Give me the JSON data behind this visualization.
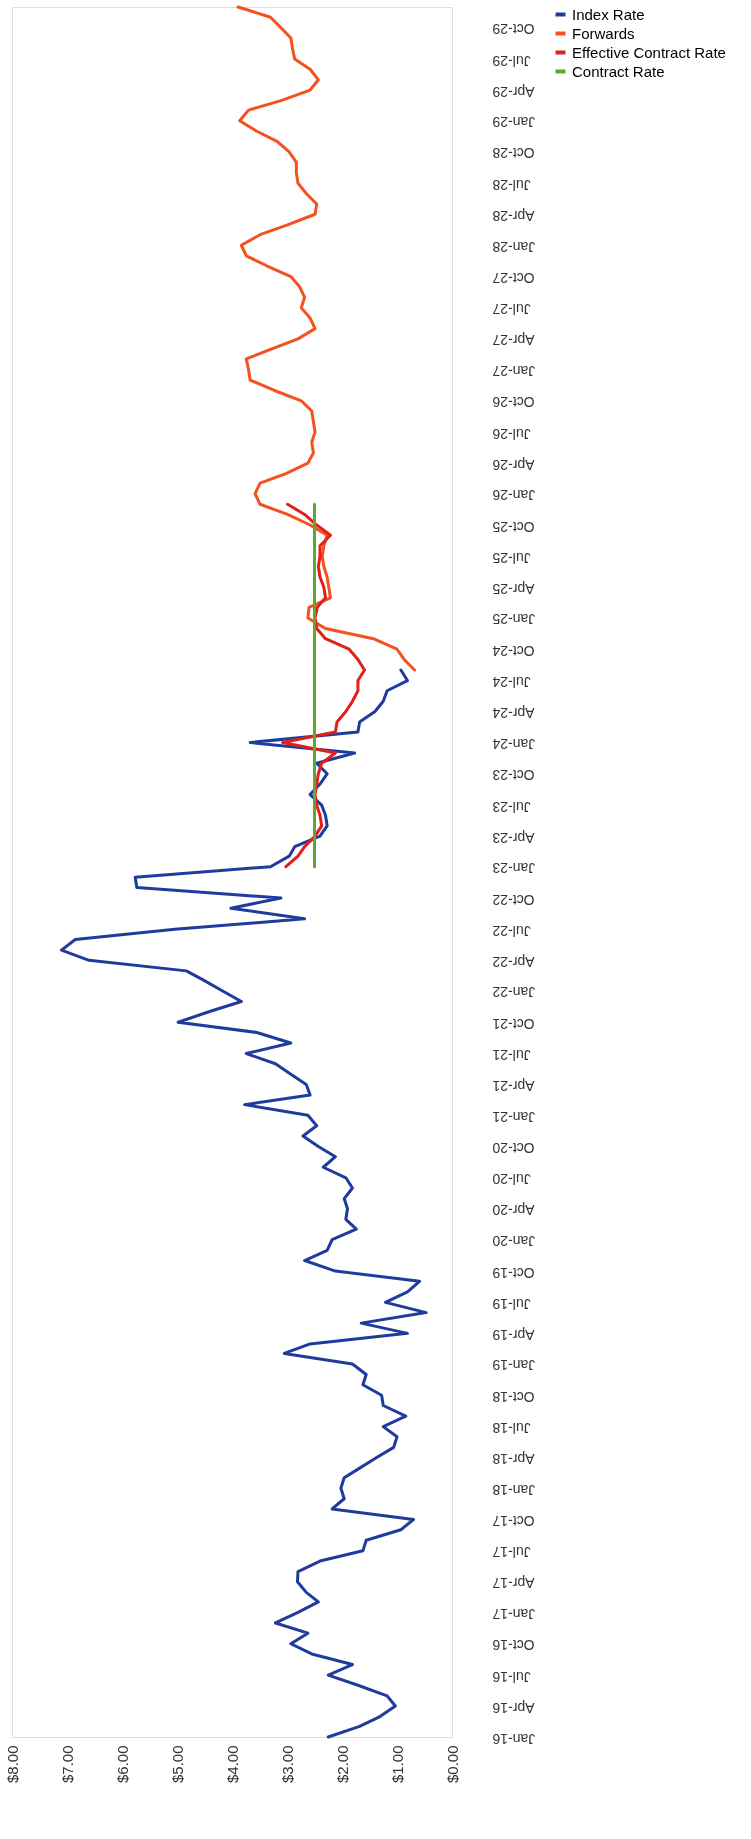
{
  "chart_data": {
    "type": "line",
    "legend": "right",
    "orientation": "horizontal",
    "ylim": [
      "2016-01",
      "2029-12"
    ],
    "yticks": [
      {
        "value": "2016-01",
        "label": "Jan-16"
      },
      {
        "value": "2016-04",
        "label": "Apr-16"
      },
      {
        "value": "2016-07",
        "label": "Jul-16"
      },
      {
        "value": "2016-10",
        "label": "Oct-16"
      },
      {
        "value": "2017-01",
        "label": "Jan-17"
      },
      {
        "value": "2017-04",
        "label": "Apr-17"
      },
      {
        "value": "2017-07",
        "label": "Jul-17"
      },
      {
        "value": "2017-10",
        "label": "Oct-17"
      },
      {
        "value": "2018-01",
        "label": "Jan-18"
      },
      {
        "value": "2018-04",
        "label": "Apr-18"
      },
      {
        "value": "2018-07",
        "label": "Jul-18"
      },
      {
        "value": "2018-10",
        "label": "Oct-18"
      },
      {
        "value": "2019-01",
        "label": "Jan-19"
      },
      {
        "value": "2019-04",
        "label": "Apr-19"
      },
      {
        "value": "2019-07",
        "label": "Jul-19"
      },
      {
        "value": "2019-10",
        "label": "Oct-19"
      },
      {
        "value": "2020-01",
        "label": "Jan-20"
      },
      {
        "value": "2020-04",
        "label": "Apr-20"
      },
      {
        "value": "2020-07",
        "label": "Jul-20"
      },
      {
        "value": "2020-10",
        "label": "Oct-20"
      },
      {
        "value": "2021-01",
        "label": "Jan-21"
      },
      {
        "value": "2021-04",
        "label": "Apr-21"
      },
      {
        "value": "2021-07",
        "label": "Jul-21"
      },
      {
        "value": "2021-10",
        "label": "Oct-21"
      },
      {
        "value": "2022-01",
        "label": "Jan-22"
      },
      {
        "value": "2022-04",
        "label": "Apr-22"
      },
      {
        "value": "2022-07",
        "label": "Jul-22"
      },
      {
        "value": "2022-10",
        "label": "Oct-22"
      },
      {
        "value": "2023-01",
        "label": "Jan-23"
      },
      {
        "value": "2023-04",
        "label": "Apr-23"
      },
      {
        "value": "2023-07",
        "label": "Jul-23"
      },
      {
        "value": "2023-10",
        "label": "Oct-23"
      },
      {
        "value": "2024-01",
        "label": "Jan-24"
      },
      {
        "value": "2024-04",
        "label": "Apr-24"
      },
      {
        "value": "2024-07",
        "label": "Jul-24"
      },
      {
        "value": "2024-10",
        "label": "Oct-24"
      },
      {
        "value": "2025-01",
        "label": "Jan-25"
      },
      {
        "value": "2025-04",
        "label": "Apr-25"
      },
      {
        "value": "2025-07",
        "label": "Jul-25"
      },
      {
        "value": "2025-10",
        "label": "Oct-25"
      },
      {
        "value": "2026-01",
        "label": "Jan-26"
      },
      {
        "value": "2026-04",
        "label": "Apr-26"
      },
      {
        "value": "2026-07",
        "label": "Jul-26"
      },
      {
        "value": "2026-10",
        "label": "Oct-26"
      },
      {
        "value": "2027-01",
        "label": "Jan-27"
      },
      {
        "value": "2027-04",
        "label": "Apr-27"
      },
      {
        "value": "2027-07",
        "label": "Jul-27"
      },
      {
        "value": "2027-10",
        "label": "Oct-27"
      },
      {
        "value": "2028-01",
        "label": "Jan-28"
      },
      {
        "value": "2028-04",
        "label": "Apr-28"
      },
      {
        "value": "2028-07",
        "label": "Jul-28"
      },
      {
        "value": "2028-10",
        "label": "Oct-28"
      },
      {
        "value": "2029-01",
        "label": "Jan-29"
      },
      {
        "value": "2029-04",
        "label": "Apr-29"
      },
      {
        "value": "2029-07",
        "label": "Jul-29"
      },
      {
        "value": "2029-10",
        "label": "Oct-29"
      }
    ],
    "xlim": [
      8,
      0
    ],
    "xticks": [
      {
        "value": 0,
        "label": "$0.00"
      },
      {
        "value": 1,
        "label": "$1.00"
      },
      {
        "value": 2,
        "label": "$2.00"
      },
      {
        "value": 3,
        "label": "$3.00"
      },
      {
        "value": 4,
        "label": "$4.00"
      },
      {
        "value": 5,
        "label": "$5.00"
      },
      {
        "value": 6,
        "label": "$6.00"
      },
      {
        "value": 7,
        "label": "$7.00"
      },
      {
        "value": 8,
        "label": "$8.00"
      }
    ],
    "series": [
      {
        "name": "Index Rate",
        "color": "#1f3c9c",
        "x": [
          "2016-01",
          "2016-02",
          "2016-03",
          "2016-04",
          "2016-05",
          "2016-06",
          "2016-07",
          "2016-08",
          "2016-09",
          "2016-10",
          "2016-11",
          "2016-12",
          "2017-01",
          "2017-02",
          "2017-03",
          "2017-04",
          "2017-05",
          "2017-06",
          "2017-07",
          "2017-08",
          "2017-09",
          "2017-10",
          "2017-11",
          "2017-12",
          "2018-01",
          "2018-02",
          "2018-03",
          "2018-04",
          "2018-05",
          "2018-06",
          "2018-07",
          "2018-08",
          "2018-09",
          "2018-10",
          "2018-11",
          "2018-12",
          "2019-01",
          "2019-02",
          "2019-03",
          "2019-04",
          "2019-05",
          "2019-06",
          "2019-07",
          "2019-08",
          "2019-09",
          "2019-10",
          "2019-11",
          "2019-12",
          "2020-01",
          "2020-02",
          "2020-03",
          "2020-04",
          "2020-05",
          "2020-06",
          "2020-07",
          "2020-08",
          "2020-09",
          "2020-10",
          "2020-11",
          "2020-12",
          "2021-01",
          "2021-02",
          "2021-03",
          "2021-04",
          "2021-05",
          "2021-06",
          "2021-07",
          "2021-08",
          "2021-09",
          "2021-10",
          "2021-11",
          "2021-12",
          "2022-01",
          "2022-02",
          "2022-03",
          "2022-04",
          "2022-05",
          "2022-06",
          "2022-07",
          "2022-08",
          "2022-09",
          "2022-10",
          "2022-11",
          "2022-12",
          "2023-01",
          "2023-02",
          "2023-03",
          "2023-04",
          "2023-05",
          "2023-06",
          "2023-07",
          "2023-08",
          "2023-09",
          "2023-10",
          "2023-11",
          "2023-12",
          "2024-01",
          "2024-02",
          "2024-03",
          "2024-04",
          "2024-05",
          "2024-06",
          "2024-07",
          "2024-08"
        ],
        "values": [
          2.25,
          1.68,
          1.31,
          1.03,
          1.18,
          1.71,
          2.25,
          1.81,
          2.55,
          2.93,
          2.62,
          3.21,
          2.8,
          2.43,
          2.65,
          2.81,
          2.8,
          2.4,
          1.62,
          1.56,
          0.93,
          0.7,
          2.18,
          1.96,
          2.02,
          1.96,
          1.68,
          1.37,
          1.06,
          1.0,
          1.25,
          0.84,
          1.25,
          1.28,
          1.62,
          1.56,
          1.81,
          3.05,
          2.58,
          0.81,
          1.65,
          0.47,
          1.21,
          0.81,
          0.59,
          2.12,
          2.68,
          2.27,
          2.18,
          1.74,
          1.93,
          1.9,
          1.96,
          1.81,
          1.93,
          2.34,
          2.12,
          2.43,
          2.71,
          2.46,
          2.62,
          3.77,
          2.58,
          2.65,
          2.93,
          3.21,
          3.74,
          2.93,
          3.55,
          4.98,
          4.42,
          3.83,
          4.17,
          4.51,
          4.83,
          6.6,
          7.1,
          6.85,
          5.04,
          2.68,
          4.02,
          3.11,
          5.73,
          5.76,
          3.3,
          2.96,
          2.86,
          2.4,
          2.27,
          2.3,
          2.37,
          2.58,
          2.4,
          2.27,
          2.46,
          1.77,
          3.67,
          1.71,
          1.68,
          1.4,
          1.25,
          1.18,
          0.81,
          0.93
        ]
      },
      {
        "name": "Forwards",
        "color": "#f4511e",
        "x": [
          "2024-08",
          "2024-09",
          "2024-10",
          "2024-11",
          "2024-12",
          "2025-01",
          "2025-02",
          "2025-03",
          "2025-04",
          "2025-05",
          "2025-06",
          "2025-07",
          "2025-08",
          "2025-09",
          "2025-10",
          "2025-11",
          "2025-12",
          "2026-01",
          "2026-02",
          "2026-03",
          "2026-04",
          "2026-05",
          "2026-06",
          "2026-07",
          "2026-08",
          "2026-09",
          "2026-10",
          "2026-11",
          "2026-12",
          "2027-01",
          "2027-02",
          "2027-03",
          "2027-04",
          "2027-05",
          "2027-06",
          "2027-07",
          "2027-08",
          "2027-09",
          "2027-10",
          "2027-11",
          "2027-12",
          "2028-01",
          "2028-02",
          "2028-03",
          "2028-04",
          "2028-05",
          "2028-06",
          "2028-07",
          "2028-08",
          "2028-09",
          "2028-10",
          "2028-11",
          "2028-12",
          "2029-01",
          "2029-02",
          "2029-03",
          "2029-04",
          "2029-05",
          "2029-06",
          "2029-07",
          "2029-08",
          "2029-09",
          "2029-10",
          "2029-11",
          "2029-12"
        ],
        "values": [
          0.68,
          0.87,
          1.0,
          1.43,
          2.3,
          2.62,
          2.6,
          2.21,
          2.24,
          2.27,
          2.33,
          2.36,
          2.33,
          2.27,
          2.58,
          2.99,
          3.49,
          3.58,
          3.49,
          3.02,
          2.62,
          2.52,
          2.55,
          2.49,
          2.52,
          2.55,
          2.74,
          3.24,
          3.67,
          3.7,
          3.74,
          3.3,
          2.8,
          2.49,
          2.58,
          2.74,
          2.68,
          2.77,
          2.93,
          3.36,
          3.74,
          3.83,
          3.49,
          2.99,
          2.49,
          2.46,
          2.65,
          2.8,
          2.83,
          2.83,
          2.96,
          3.18,
          3.55,
          3.86,
          3.7,
          3.11,
          2.58,
          2.43,
          2.58,
          2.86,
          2.9,
          2.93,
          3.11,
          3.3,
          3.89
        ]
      },
      {
        "name": "Effective Contract Rate",
        "color": "#e0201b",
        "x": [
          "2023-01",
          "2023-02",
          "2023-03",
          "2023-04",
          "2023-05",
          "2023-06",
          "2023-07",
          "2023-08",
          "2023-09",
          "2023-10",
          "2023-11",
          "2023-12",
          "2024-01",
          "2024-02",
          "2024-03",
          "2024-04",
          "2024-05",
          "2024-06",
          "2024-07",
          "2024-08",
          "2024-09",
          "2024-10",
          "2024-11",
          "2024-12",
          "2025-01",
          "2025-02",
          "2025-03",
          "2025-04",
          "2025-05",
          "2025-06",
          "2025-07",
          "2025-08",
          "2025-09",
          "2025-10",
          "2025-11",
          "2025-12"
        ],
        "values": [
          3.02,
          2.8,
          2.68,
          2.49,
          2.37,
          2.4,
          2.46,
          2.49,
          2.46,
          2.43,
          2.37,
          2.12,
          3.08,
          2.12,
          2.09,
          1.93,
          1.81,
          1.71,
          1.71,
          1.59,
          1.71,
          1.87,
          2.3,
          2.46,
          2.49,
          2.45,
          2.3,
          2.33,
          2.4,
          2.43,
          2.4,
          2.4,
          2.21,
          2.46,
          2.68,
          2.99
        ]
      },
      {
        "name": "Contract Rate",
        "color": "#5aaa32",
        "x": [
          "2023-01",
          "2025-12"
        ],
        "values": [
          2.5,
          2.5
        ]
      }
    ]
  }
}
